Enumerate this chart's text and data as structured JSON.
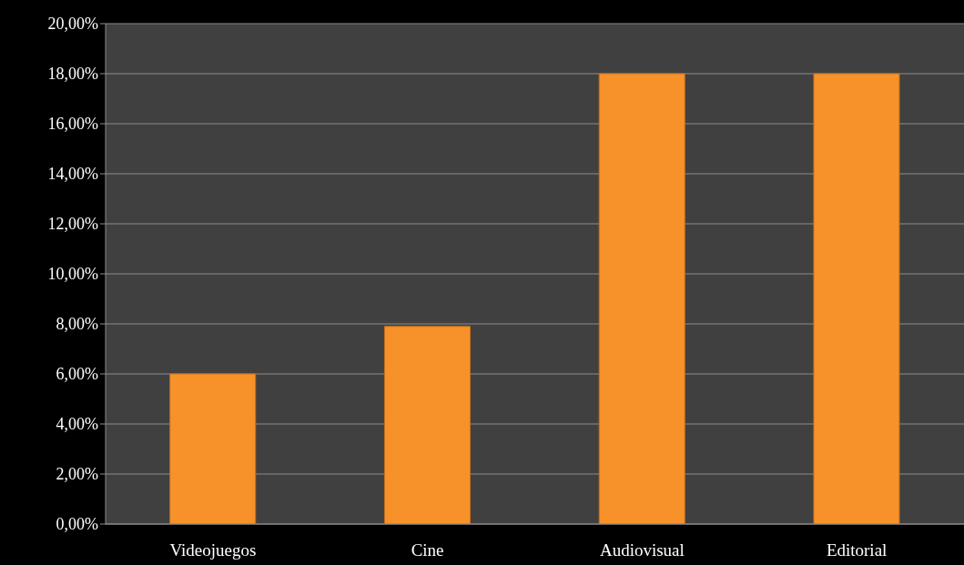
{
  "chart_data": {
    "type": "bar",
    "categories": [
      "Videojuegos",
      "Cine",
      "Audiovisual",
      "Editorial"
    ],
    "values": [
      6.0,
      7.9,
      18.0,
      18.0
    ],
    "color": "#f7922a",
    "ylim": [
      0,
      20
    ],
    "yticks": [
      {
        "value": 0,
        "label": "0,00%"
      },
      {
        "value": 2,
        "label": "2,00%"
      },
      {
        "value": 4,
        "label": "4,00%"
      },
      {
        "value": 6,
        "label": "6,00%"
      },
      {
        "value": 8,
        "label": "8,00%"
      },
      {
        "value": 10,
        "label": "10,00%"
      },
      {
        "value": 12,
        "label": "12,00%"
      },
      {
        "value": 14,
        "label": "14,00%"
      },
      {
        "value": 16,
        "label": "16,00%"
      },
      {
        "value": 18,
        "label": "18,00%"
      },
      {
        "value": 20,
        "label": "20,00%"
      }
    ],
    "grid": "y"
  }
}
